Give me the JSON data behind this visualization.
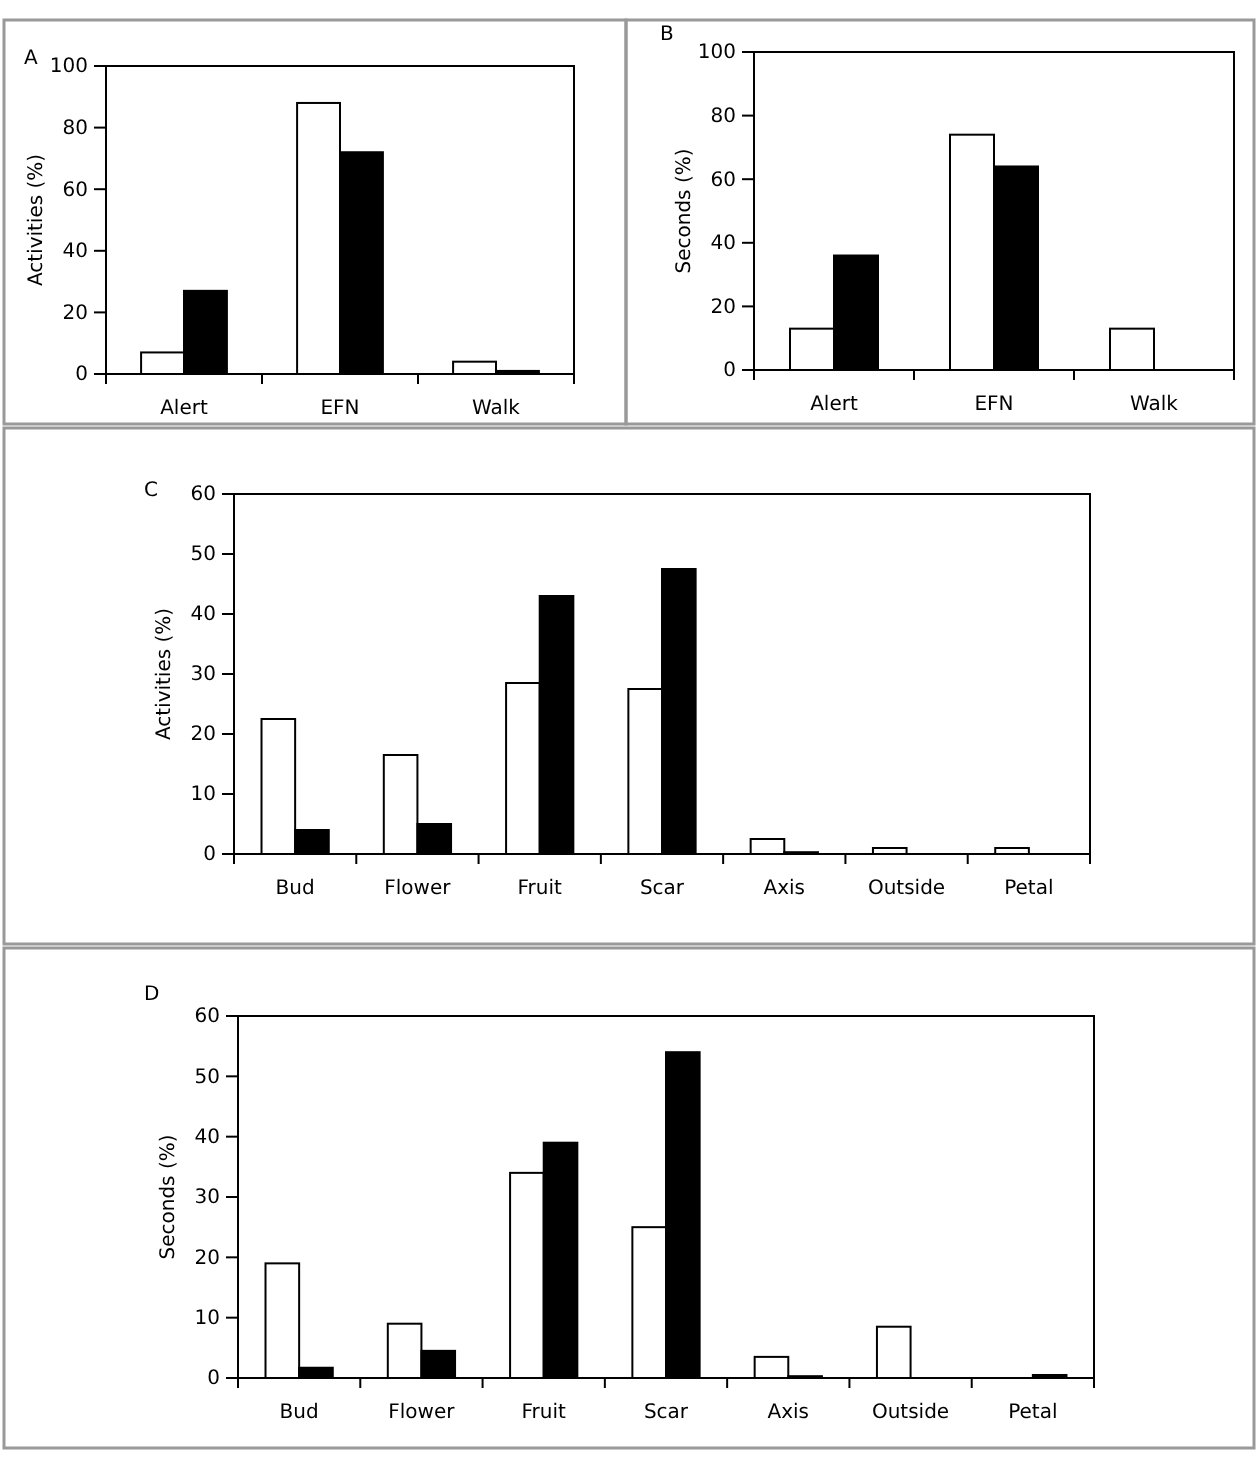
{
  "chart_data": [
    {
      "type": "bar",
      "title": "A",
      "ylabel": "Activities (%)",
      "categories": [
        "Alert",
        "EFN",
        "Walk"
      ],
      "ylim": [
        0,
        100
      ],
      "yticks": [
        0,
        20,
        40,
        60,
        80,
        100
      ],
      "series": [
        {
          "color": "#ffffff",
          "values": [
            7,
            88,
            4
          ]
        },
        {
          "color": "#000000",
          "values": [
            27,
            72,
            1
          ]
        }
      ]
    },
    {
      "type": "bar",
      "title": "B",
      "ylabel": "Seconds (%)",
      "categories": [
        "Alert",
        "EFN",
        "Walk"
      ],
      "ylim": [
        0,
        100
      ],
      "yticks": [
        0,
        20,
        40,
        60,
        80,
        100
      ],
      "series": [
        {
          "color": "#ffffff",
          "values": [
            13,
            74,
            13
          ]
        },
        {
          "color": "#000000",
          "values": [
            36,
            64,
            0
          ]
        }
      ]
    },
    {
      "type": "bar",
      "title": "C",
      "ylabel": "Activities (%)",
      "categories": [
        "Bud",
        "Flower",
        "Fruit",
        "Scar",
        "Axis",
        "Outside",
        "Petal"
      ],
      "ylim": [
        0,
        60
      ],
      "yticks": [
        0,
        10,
        20,
        30,
        40,
        50,
        60
      ],
      "series": [
        {
          "color": "#ffffff",
          "values": [
            22.5,
            16.5,
            28.5,
            27.5,
            2.5,
            1,
            1
          ]
        },
        {
          "color": "#000000",
          "values": [
            4,
            5,
            43,
            47.5,
            0.3,
            0,
            0
          ]
        }
      ]
    },
    {
      "type": "bar",
      "title": "D",
      "ylabel": "Seconds (%)",
      "categories": [
        "Bud",
        "Flower",
        "Fruit",
        "Scar",
        "Axis",
        "Outside",
        "Petal"
      ],
      "ylim": [
        0,
        60
      ],
      "yticks": [
        0,
        10,
        20,
        30,
        40,
        50,
        60
      ],
      "series": [
        {
          "color": "#ffffff",
          "values": [
            19,
            9,
            34,
            25,
            3.5,
            8.5,
            0
          ]
        },
        {
          "color": "#000000",
          "values": [
            1.7,
            4.5,
            39,
            54,
            0.3,
            0,
            0.5
          ]
        }
      ]
    }
  ]
}
